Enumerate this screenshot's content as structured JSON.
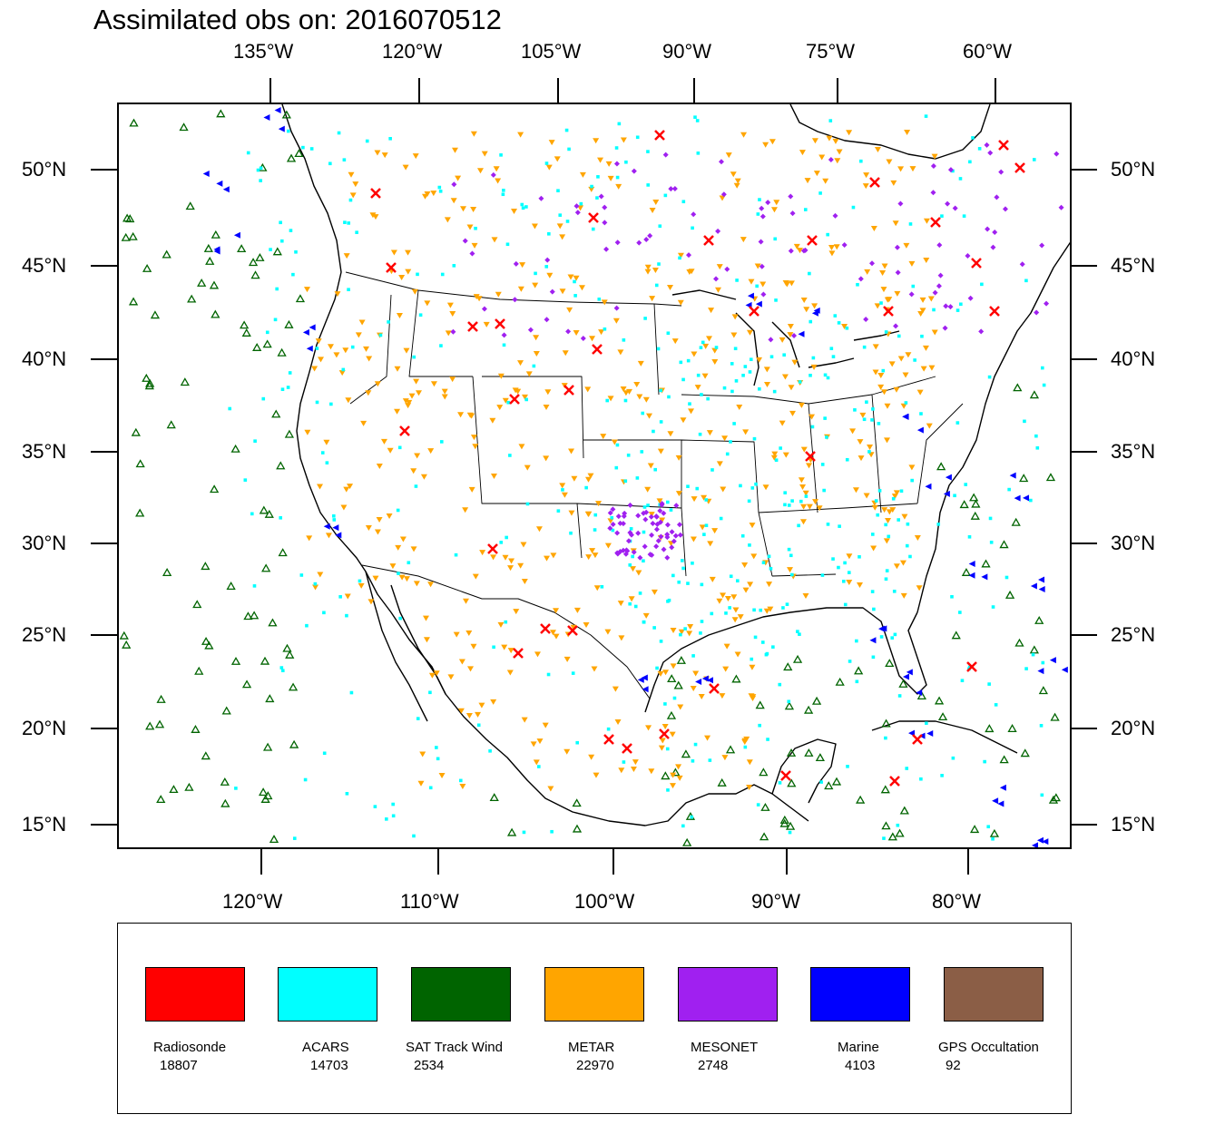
{
  "title": "Assimilated obs on: 2016070512",
  "top_axis_labels": [
    "135°W",
    "120°W",
    "105°W",
    "90°W",
    "75°W",
    "60°W"
  ],
  "bottom_axis_labels": [
    "120°W",
    "110°W",
    "100°W",
    "90°W",
    "80°W"
  ],
  "lat_labels": [
    "50°N",
    "45°N",
    "40°N",
    "35°N",
    "30°N",
    "25°N",
    "20°N",
    "15°N"
  ],
  "legend": [
    {
      "name": "Radiosonde",
      "count": "18807",
      "color": "#ff0000",
      "marker": "x"
    },
    {
      "name": "ACARS",
      "count": "14703",
      "color": "#00ffff",
      "marker": "square"
    },
    {
      "name": "SAT Track Wind",
      "count": "2534",
      "color": "#006400",
      "marker": "triangle"
    },
    {
      "name": "METAR",
      "count": "22970",
      "color": "#ffa500",
      "marker": "down-triangle"
    },
    {
      "name": "MESONET",
      "count": "2748",
      "color": "#a020f0",
      "marker": "diamond"
    },
    {
      "name": "Marine",
      "count": "4103",
      "color": "#0000ff",
      "marker": "left-triangle"
    },
    {
      "name": "GPS Occultation",
      "count": "92",
      "color": "#8b5e46",
      "marker": "square"
    }
  ]
}
